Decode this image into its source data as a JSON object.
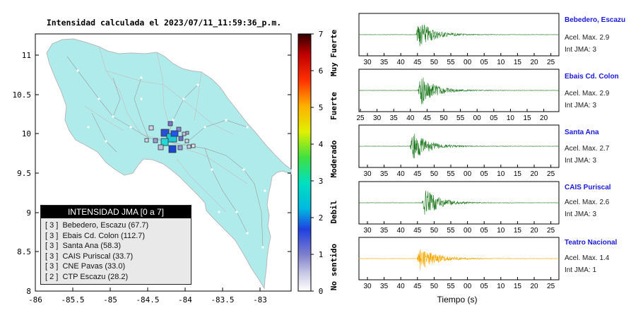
{
  "map": {
    "title": "Intensidad calculada el 2023/07/11_11:59:36_p.m.",
    "x_ticks": [
      "-86",
      "-85.5",
      "-85",
      "-84.5",
      "-84",
      "-83.5",
      "-83"
    ],
    "y_ticks": [
      "11",
      "10.5",
      "10",
      "9.5",
      "9",
      "8.5",
      "8"
    ],
    "land_color": "#b0ebeb",
    "water_color": "#ffffff"
  },
  "colorbar": {
    "ticks": [
      "0",
      "1",
      "2",
      "3",
      "4",
      "5",
      "6",
      "7"
    ],
    "labels": [
      "No sentido",
      "Debil",
      "Moderado",
      "Fuerte",
      "Muy Fuerte"
    ]
  },
  "legend": {
    "title": "INTENSIDAD JMA [0 a 7]",
    "items": [
      {
        "intensity": "[ 3 ]",
        "name": "Bebedero, Escazu (67.7)"
      },
      {
        "intensity": "[ 3 ]",
        "name": "Ebais Cd. Colon (112.7)"
      },
      {
        "intensity": "[ 3 ]",
        "name": "Santa Ana (58.3)"
      },
      {
        "intensity": "[ 3 ]",
        "name": "CAIS Puriscal (33.7)"
      },
      {
        "intensity": "[ 3 ]",
        "name": "CNE Pavas (33.0)"
      },
      {
        "intensity": "[ 2 ]",
        "name": "CTP Escazu (28.2)"
      }
    ]
  },
  "stations": [
    {
      "name": "Bebedero, Escazu",
      "accel": "Acel. Max. 2.9",
      "jma": "Int JMA: 3",
      "ticks": [
        "30",
        "35",
        "40",
        "45",
        "50",
        "55",
        "00",
        "05",
        "10",
        "15",
        "20",
        "25"
      ],
      "color": "#1f7a1f"
    },
    {
      "name": "Ebais Cd. Colon",
      "accel": "Acel. Max. 2.9",
      "jma": "Int JMA: 3",
      "ticks": [
        "25",
        "30",
        "35",
        "40",
        "45",
        "50",
        "55",
        "00",
        "05",
        "10",
        "15",
        "20"
      ],
      "color": "#1f7a1f"
    },
    {
      "name": "Santa Ana",
      "accel": "Acel. Max. 2.7",
      "jma": "Int JMA: 3",
      "ticks": [
        "30",
        "35",
        "40",
        "45",
        "50",
        "55",
        "00",
        "05",
        "10",
        "15",
        "20",
        "25"
      ],
      "color": "#1f7a1f"
    },
    {
      "name": "CAIS Puriscal",
      "accel": "Acel. Max. 2.6",
      "jma": "Int JMA: 3",
      "ticks": [
        "30",
        "35",
        "40",
        "45",
        "50",
        "55",
        "00",
        "05",
        "10",
        "15",
        "20",
        "25"
      ],
      "color": "#1f7a1f"
    },
    {
      "name": "Teatro Nacional",
      "accel": "Acel. Max. 1.4",
      "jma": "Int JMA: 1",
      "ticks": [
        "30",
        "35",
        "40",
        "45",
        "50",
        "55",
        "00",
        "05",
        "10",
        "15",
        "20",
        "25"
      ],
      "color": "#f5a800"
    }
  ],
  "time_axis_label": "Tiempo (s)"
}
